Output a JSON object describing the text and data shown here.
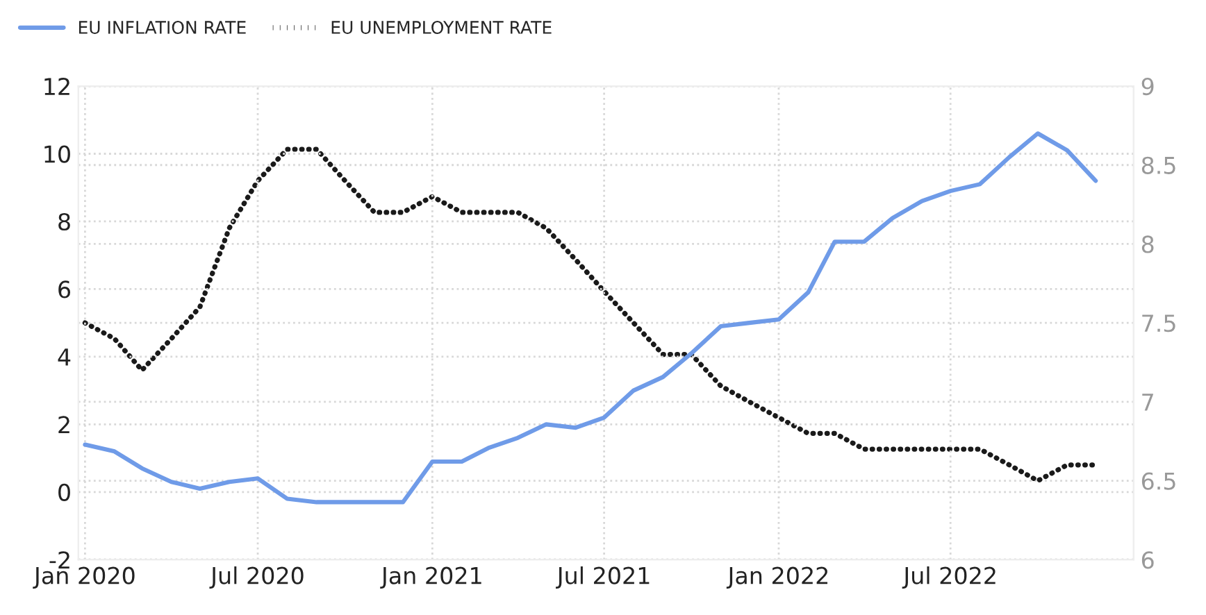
{
  "chart_data": {
    "type": "line",
    "x": [
      "2020-01",
      "2020-02",
      "2020-03",
      "2020-04",
      "2020-05",
      "2020-06",
      "2020-07",
      "2020-08",
      "2020-09",
      "2020-10",
      "2020-11",
      "2020-12",
      "2021-01",
      "2021-02",
      "2021-03",
      "2021-04",
      "2021-05",
      "2021-06",
      "2021-07",
      "2021-08",
      "2021-09",
      "2021-10",
      "2021-11",
      "2021-12",
      "2022-01",
      "2022-02",
      "2022-03",
      "2022-04",
      "2022-05",
      "2022-06",
      "2022-07",
      "2022-08",
      "2022-09",
      "2022-10",
      "2022-11",
      "2022-12"
    ],
    "series": [
      {
        "name": "EU INFLATION RATE",
        "color": "#6f9be8",
        "line_style": "solid",
        "values": [
          1.4,
          1.2,
          0.7,
          0.3,
          0.1,
          0.3,
          0.4,
          -0.2,
          -0.3,
          -0.3,
          -0.3,
          -0.3,
          0.9,
          0.9,
          1.3,
          1.6,
          2.0,
          1.9,
          2.2,
          3.0,
          3.4,
          4.1,
          4.9,
          5.0,
          5.1,
          5.9,
          7.4,
          7.4,
          8.1,
          8.6,
          8.9,
          9.1,
          9.9,
          10.6,
          10.1,
          9.2
        ]
      },
      {
        "name": "EU UNEMPLOYMENT RATE",
        "color": "#1a1a1a",
        "line_style": "dotted",
        "axis": "y2",
        "values": [
          7.5,
          7.4,
          7.2,
          7.4,
          7.6,
          8.1,
          8.4,
          8.6,
          8.6,
          8.4,
          8.2,
          8.2,
          8.3,
          8.2,
          8.2,
          8.2,
          8.1,
          7.9,
          7.7,
          7.5,
          7.3,
          7.3,
          7.1,
          7.0,
          6.9,
          6.8,
          6.8,
          6.7,
          6.7,
          6.7,
          6.7,
          6.7,
          6.6,
          6.5,
          6.6,
          6.6
        ]
      }
    ],
    "xlim": [
      "2019-12-25",
      "2023-01-10"
    ],
    "xticks": [
      {
        "value": "2020-01",
        "label": "Jan 2020"
      },
      {
        "value": "2020-07",
        "label": "Jul 2020"
      },
      {
        "value": "2021-01",
        "label": "Jan 2021"
      },
      {
        "value": "2021-07",
        "label": "Jul 2021"
      },
      {
        "value": "2022-01",
        "label": "Jan 2022"
      },
      {
        "value": "2022-07",
        "label": "Jul 2022"
      }
    ],
    "ylim": [
      -2,
      12
    ],
    "yticks": [
      -2,
      0,
      2,
      4,
      6,
      8,
      10,
      12
    ],
    "y2lim": [
      6,
      9
    ],
    "y2ticks": [
      6,
      6.5,
      7,
      7.5,
      8,
      8.5,
      9
    ],
    "grid": true,
    "legend": "top left"
  }
}
